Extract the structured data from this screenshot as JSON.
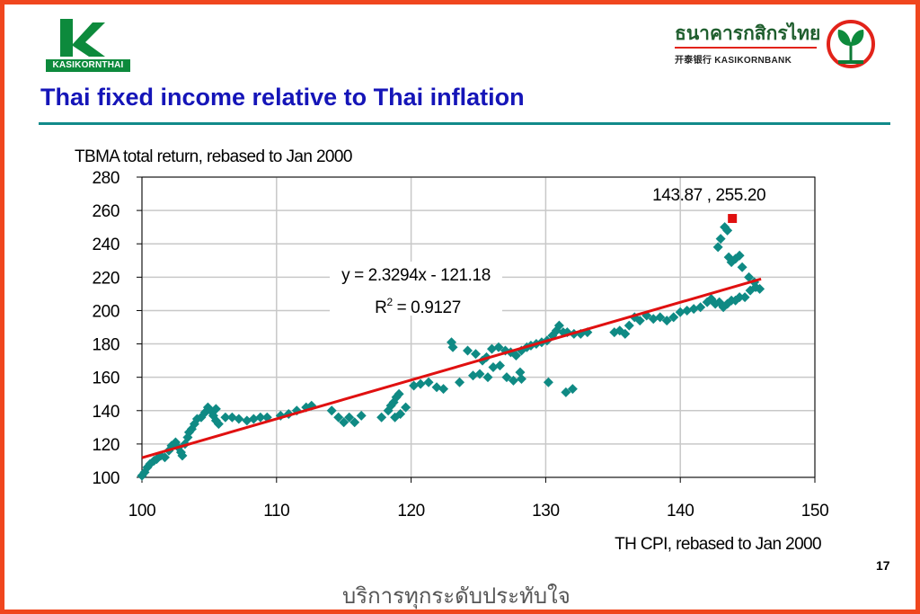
{
  "header": {
    "left_logo_text": "KASIKORNTHAI",
    "bank_name_thai": "ธนาคารกสิกรไทย",
    "bank_name_en": "开泰银行 KASIKORNBANK",
    "slide_title": "Thai fixed income relative to Thai inflation"
  },
  "footer": {
    "slogan": "บริการทุกระดับประทับใจ",
    "page_number": "17"
  },
  "colors": {
    "frame": "#f0461e",
    "title": "#1515b8",
    "rule": "#118a8a",
    "points": "#0f8a84",
    "trendline": "#e01010",
    "highlight": "#e01010"
  },
  "chart_data": {
    "type": "scatter",
    "ylabel": "TBMA total return, rebased to Jan 2000",
    "xlabel": "TH CPI, rebased to Jan 2000",
    "xlim": [
      100,
      150
    ],
    "ylim": [
      100,
      280
    ],
    "xticks": [
      100,
      110,
      120,
      130,
      140,
      150
    ],
    "yticks": [
      100,
      120,
      140,
      160,
      180,
      200,
      220,
      240,
      260,
      280
    ],
    "grid": true,
    "trendline": {
      "slope": 2.3294,
      "intercept": -121.18,
      "x_range": [
        100,
        146
      ],
      "label": "y = 2.3294x - 121.18",
      "r2_label": "R",
      "r2_value": " = 0.9127"
    },
    "highlight": {
      "x": 143.87,
      "y": 255.2,
      "label": "143.87 ,  255.20"
    },
    "points": [
      [
        100.0,
        101
      ],
      [
        100.2,
        103
      ],
      [
        100.4,
        106
      ],
      [
        100.6,
        108
      ],
      [
        100.9,
        110
      ],
      [
        101.1,
        111
      ],
      [
        101.4,
        113
      ],
      [
        101.7,
        112
      ],
      [
        102.0,
        116
      ],
      [
        102.2,
        119
      ],
      [
        102.5,
        121
      ],
      [
        102.7,
        118
      ],
      [
        102.9,
        115
      ],
      [
        103.0,
        113
      ],
      [
        103.2,
        120
      ],
      [
        103.4,
        124
      ],
      [
        103.5,
        127
      ],
      [
        103.7,
        129
      ],
      [
        103.9,
        132
      ],
      [
        104.1,
        135
      ],
      [
        104.4,
        136
      ],
      [
        104.7,
        139
      ],
      [
        104.9,
        142
      ],
      [
        105.1,
        140
      ],
      [
        105.3,
        137
      ],
      [
        105.5,
        134
      ],
      [
        105.7,
        132
      ],
      [
        105.5,
        141
      ],
      [
        106.2,
        136
      ],
      [
        106.7,
        136
      ],
      [
        107.2,
        135
      ],
      [
        107.8,
        134
      ],
      [
        108.3,
        135
      ],
      [
        108.8,
        136
      ],
      [
        109.3,
        136
      ],
      [
        110.3,
        137
      ],
      [
        110.9,
        138
      ],
      [
        111.5,
        140
      ],
      [
        112.2,
        142
      ],
      [
        112.6,
        143
      ],
      [
        114.1,
        140
      ],
      [
        114.6,
        136
      ],
      [
        115.0,
        133
      ],
      [
        115.4,
        136
      ],
      [
        115.8,
        133
      ],
      [
        116.3,
        137
      ],
      [
        117.8,
        136
      ],
      [
        118.3,
        140
      ],
      [
        118.5,
        143
      ],
      [
        118.7,
        145
      ],
      [
        118.9,
        148
      ],
      [
        119.1,
        150
      ],
      [
        118.8,
        136
      ],
      [
        119.2,
        138
      ],
      [
        119.6,
        142
      ],
      [
        120.2,
        155
      ],
      [
        120.7,
        156
      ],
      [
        121.3,
        157
      ],
      [
        121.9,
        154
      ],
      [
        122.4,
        153
      ],
      [
        123.0,
        181
      ],
      [
        123.1,
        178
      ],
      [
        123.6,
        157
      ],
      [
        124.2,
        176
      ],
      [
        124.8,
        174
      ],
      [
        125.3,
        170
      ],
      [
        125.6,
        172
      ],
      [
        126.0,
        177
      ],
      [
        126.5,
        178
      ],
      [
        127.0,
        176
      ],
      [
        127.4,
        175
      ],
      [
        127.8,
        173
      ],
      [
        128.2,
        176
      ],
      [
        128.6,
        178
      ],
      [
        128.9,
        179
      ],
      [
        129.3,
        180
      ],
      [
        129.7,
        181
      ],
      [
        130.1,
        182
      ],
      [
        130.5,
        185
      ],
      [
        130.8,
        188
      ],
      [
        131.0,
        191
      ],
      [
        131.3,
        187
      ],
      [
        131.6,
        187
      ],
      [
        132.1,
        186
      ],
      [
        132.6,
        186
      ],
      [
        133.1,
        187
      ],
      [
        124.6,
        161
      ],
      [
        125.1,
        162
      ],
      [
        125.7,
        160
      ],
      [
        126.1,
        166
      ],
      [
        126.6,
        167
      ],
      [
        127.1,
        160
      ],
      [
        127.6,
        158
      ],
      [
        128.1,
        163
      ],
      [
        128.2,
        159
      ],
      [
        130.2,
        157
      ],
      [
        131.5,
        151
      ],
      [
        132.0,
        153
      ],
      [
        135.1,
        187
      ],
      [
        135.5,
        188
      ],
      [
        135.9,
        186
      ],
      [
        136.2,
        191
      ],
      [
        136.6,
        196
      ],
      [
        137.0,
        194
      ],
      [
        137.5,
        197
      ],
      [
        138.0,
        195
      ],
      [
        138.5,
        196
      ],
      [
        139.0,
        194
      ],
      [
        139.5,
        196
      ],
      [
        140.0,
        199
      ],
      [
        140.5,
        200
      ],
      [
        141.0,
        201
      ],
      [
        141.5,
        202
      ],
      [
        142.0,
        205
      ],
      [
        142.3,
        207
      ],
      [
        142.6,
        204
      ],
      [
        142.9,
        205
      ],
      [
        143.2,
        202
      ],
      [
        143.5,
        204
      ],
      [
        143.8,
        206
      ],
      [
        144.1,
        206
      ],
      [
        144.4,
        208
      ],
      [
        144.8,
        208
      ],
      [
        145.2,
        212
      ],
      [
        145.6,
        214
      ],
      [
        145.9,
        213
      ],
      [
        142.8,
        238
      ],
      [
        143.0,
        243
      ],
      [
        143.3,
        250
      ],
      [
        143.6,
        232
      ],
      [
        143.8,
        229
      ],
      [
        144.1,
        231
      ],
      [
        144.4,
        233
      ],
      [
        144.6,
        226
      ],
      [
        145.1,
        220
      ],
      [
        145.5,
        217
      ],
      [
        143.5,
        248
      ]
    ]
  }
}
